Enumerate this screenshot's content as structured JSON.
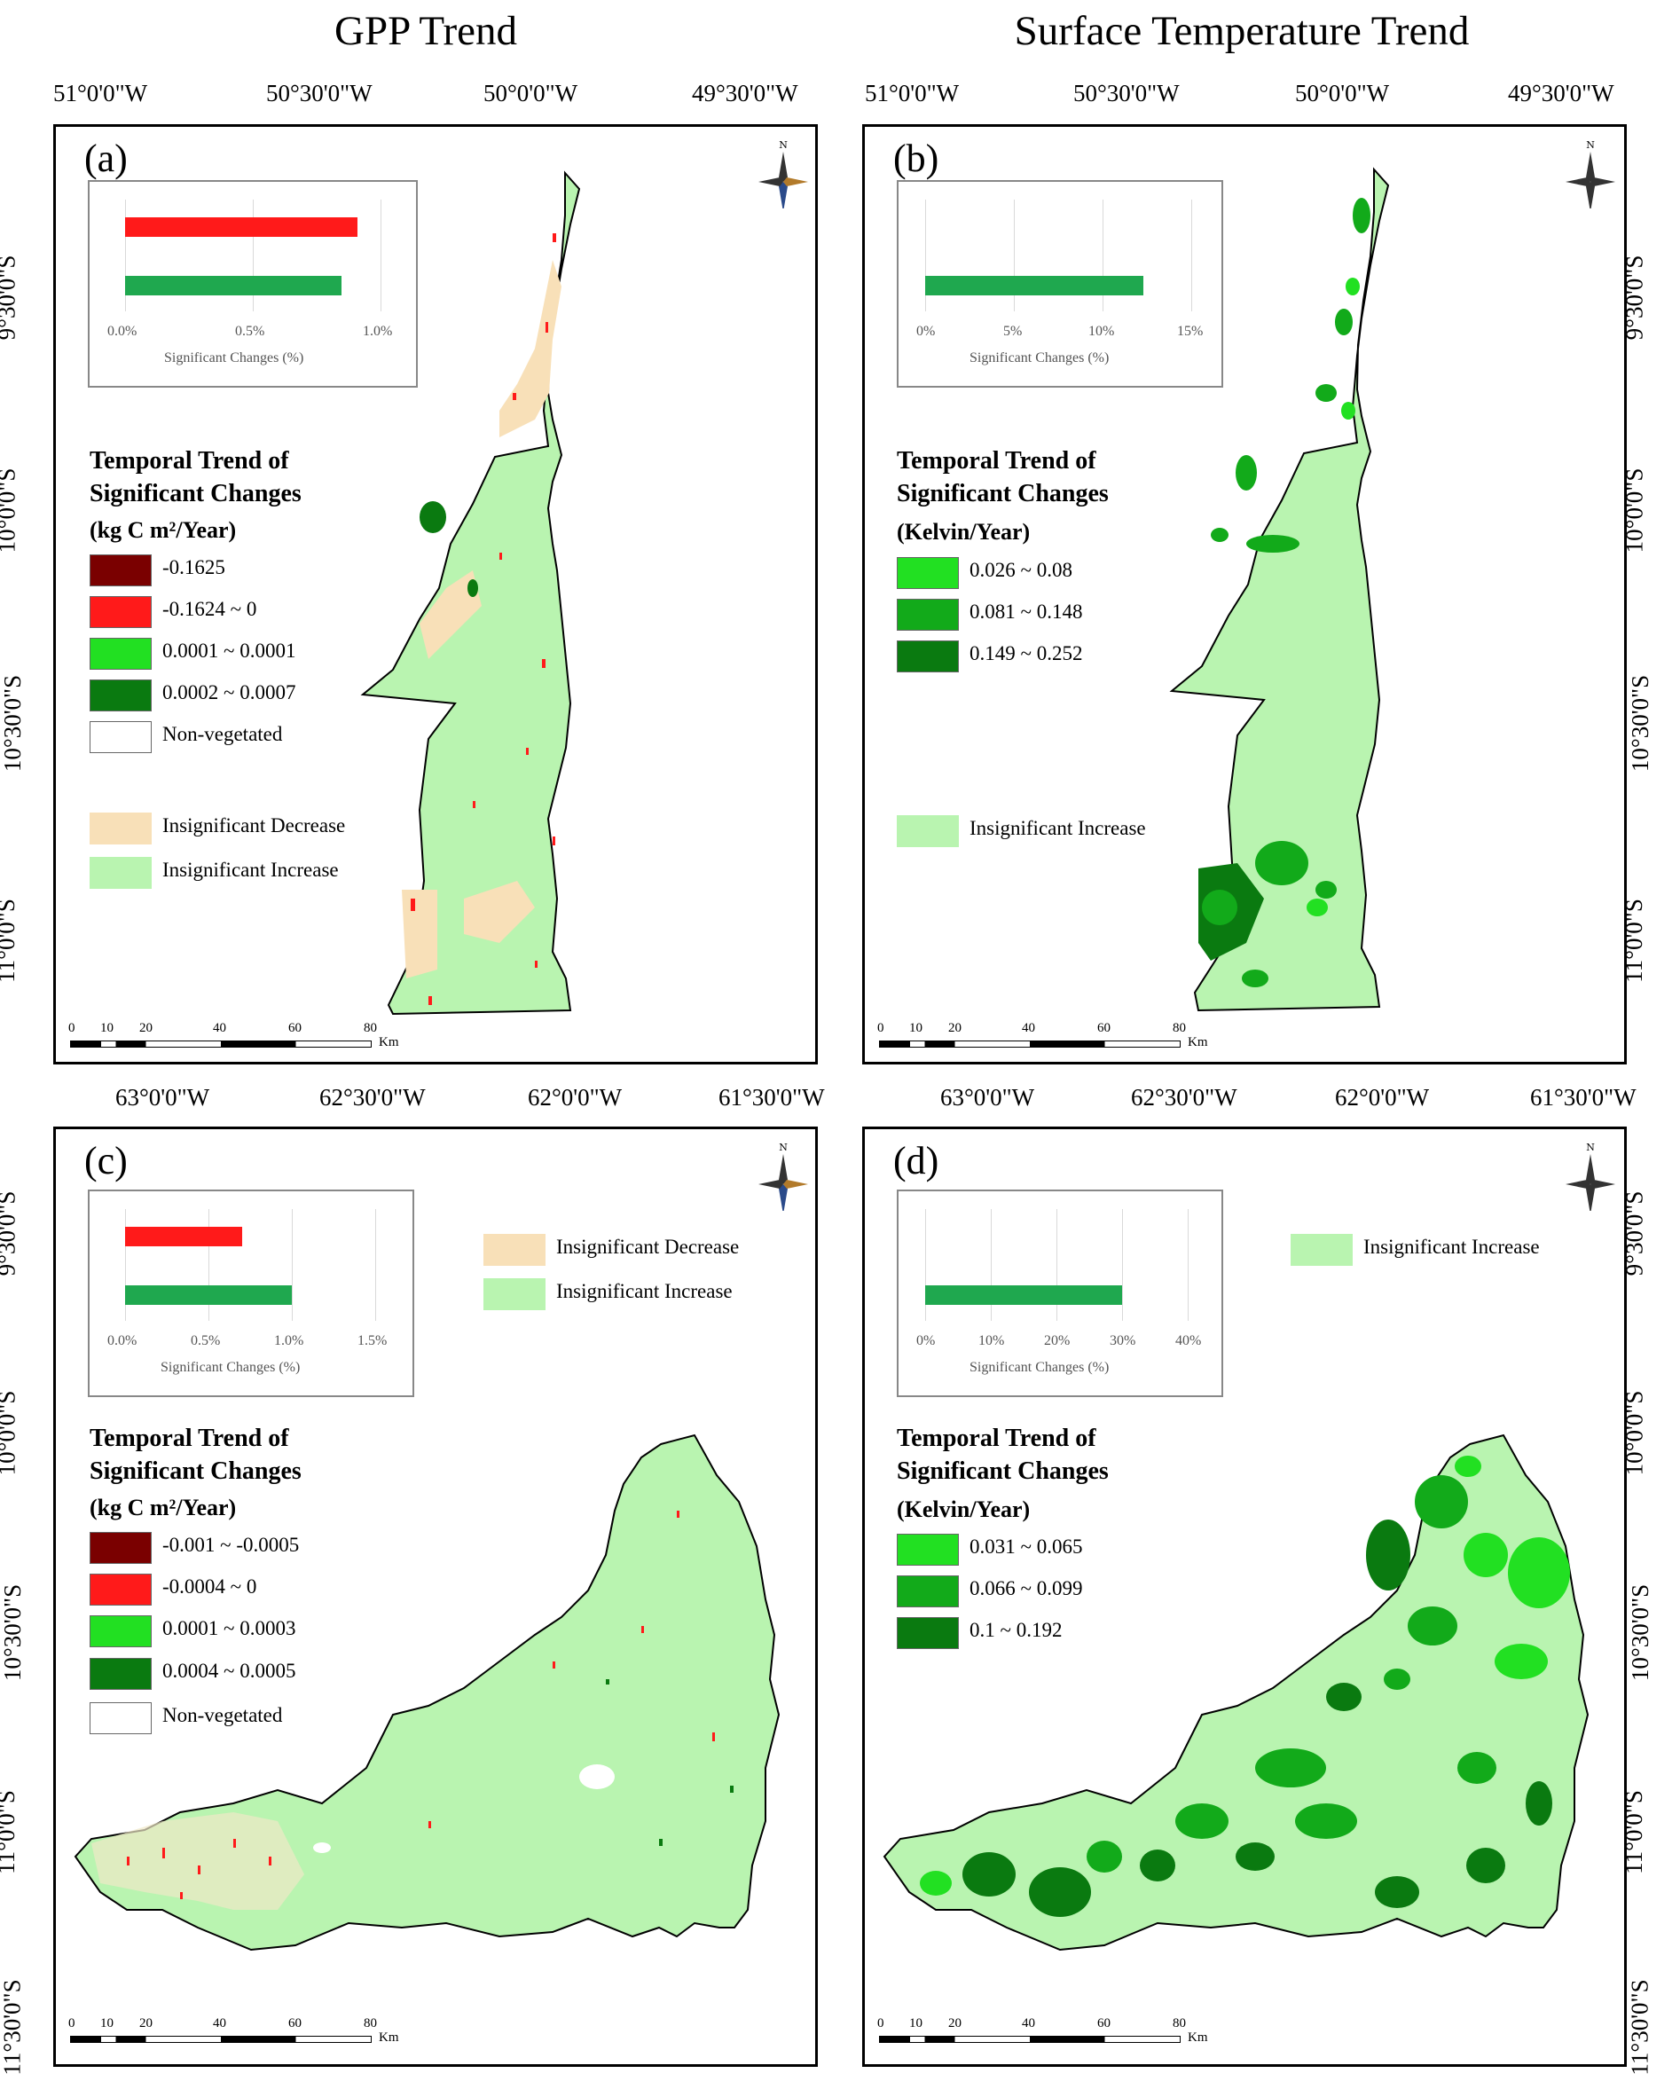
{
  "titles": {
    "left": "GPP Trend",
    "right": "Surface Temperature Trend"
  },
  "top_lon_labels": [
    "51°0'0\"W",
    "50°30'0\"W",
    "50°0'0\"W",
    "49°30'0\"W"
  ],
  "mid_lon_labels": [
    "63°0'0\"W",
    "62°30'0\"W",
    "62°0'0\"W",
    "61°30'0\"W"
  ],
  "lat_labels_top": [
    "9°30'0\"S",
    "10°0'0\"S",
    "10°30'0\"S",
    "11°0'0\"S"
  ],
  "lat_labels_bottom": [
    "9°30'0\"S",
    "10°0'0\"S",
    "10°30'0\"S",
    "11°0'0\"S",
    "11°30'0\"S"
  ],
  "panels": {
    "a": {
      "letter": "(a)",
      "inset": {
        "ticks": [
          "0.0%",
          "0.5%",
          "1.0%"
        ],
        "caption": "Significant  Changes  (%)",
        "bars": [
          {
            "value_pct": 0.9,
            "color": "#ff1a1a"
          },
          {
            "value_pct": 0.84,
            "color": "#1fa84f"
          }
        ],
        "max": 1.0
      },
      "legend_title": [
        "Temporal Trend of",
        "Significant Changes"
      ],
      "legend_unit": "(kg C m²/Year)",
      "legend_items": [
        {
          "label": "-0.1625",
          "color": "#7a0000"
        },
        {
          "label": "-0.1624 ~ 0",
          "color": "#ff1a1a"
        },
        {
          "label": "0.0001 ~ 0.0001",
          "color": "#22e022"
        },
        {
          "label": "0.0002 ~ 0.0007",
          "color": "#0a7a10"
        },
        {
          "label": "Non-vegetated",
          "color": "#ffffff"
        }
      ],
      "insig_items": [
        {
          "label": "Insignificant Decrease",
          "color": "#f8e0b8"
        },
        {
          "label": "Insignificant Increase",
          "color": "#b9f4b0"
        }
      ]
    },
    "b": {
      "letter": "(b)",
      "inset": {
        "ticks": [
          "0%",
          "5%",
          "10%",
          "15%"
        ],
        "caption": "Significant  Changes  (%)",
        "bars": [
          {
            "value_pct": 12.3,
            "color": "#1fa84f"
          }
        ],
        "max": 15
      },
      "legend_title": [
        "Temporal Trend of",
        "Significant Changes"
      ],
      "legend_unit": "(Kelvin/Year)",
      "legend_items": [
        {
          "label": "0.026 ~ 0.08",
          "color": "#22e022"
        },
        {
          "label": "0.081 ~ 0.148",
          "color": "#12aa1a"
        },
        {
          "label": "0.149 ~ 0.252",
          "color": "#0a7a10"
        }
      ],
      "insig_items": [
        {
          "label": "Insignificant Increase",
          "color": "#b9f4b0"
        }
      ]
    },
    "c": {
      "letter": "(c)",
      "inset": {
        "ticks": [
          "0.0%",
          "0.5%",
          "1.0%",
          "1.5%"
        ],
        "caption": "Significant  Changes  (%)",
        "bars": [
          {
            "value_pct": 0.7,
            "color": "#ff1a1a"
          },
          {
            "value_pct": 1.0,
            "color": "#1fa84f"
          }
        ],
        "max": 1.5
      },
      "legend_title": [
        "Temporal Trend of",
        "Significant Changes"
      ],
      "legend_unit": "(kg C m²/Year)",
      "legend_items": [
        {
          "label": "-0.001 ~ -0.0005",
          "color": "#7a0000"
        },
        {
          "label": "-0.0004 ~ 0",
          "color": "#ff1a1a"
        },
        {
          "label": "0.0001 ~ 0.0003",
          "color": "#22e022"
        },
        {
          "label": "0.0004 ~ 0.0005",
          "color": "#0a7a10"
        },
        {
          "label": "Non-vegetated",
          "color": "#ffffff"
        }
      ],
      "insig_items": [
        {
          "label": "Insignificant Decrease",
          "color": "#f8e0b8"
        },
        {
          "label": "Insignificant Increase",
          "color": "#b9f4b0"
        }
      ]
    },
    "d": {
      "letter": "(d)",
      "inset": {
        "ticks": [
          "0%",
          "10%",
          "20%",
          "30%",
          "40%"
        ],
        "caption": "Significant  Changes  (%)",
        "bars": [
          {
            "value_pct": 30,
            "color": "#1fa84f"
          }
        ],
        "max": 40
      },
      "legend_title": [
        "Temporal Trend of",
        "Significant Changes"
      ],
      "legend_unit": "(Kelvin/Year)",
      "legend_items": [
        {
          "label": "0.031 ~ 0.065",
          "color": "#22e022"
        },
        {
          "label": "0.066 ~ 0.099",
          "color": "#12aa1a"
        },
        {
          "label": "0.1 ~ 0.192",
          "color": "#0a7a10"
        }
      ],
      "insig_items": [
        {
          "label": "Insignificant Increase",
          "color": "#b9f4b0"
        }
      ]
    }
  },
  "scalebar": {
    "ticks": [
      "0",
      "10",
      "20",
      "40",
      "60",
      "80"
    ],
    "unit": "Km"
  },
  "north_label": "N"
}
